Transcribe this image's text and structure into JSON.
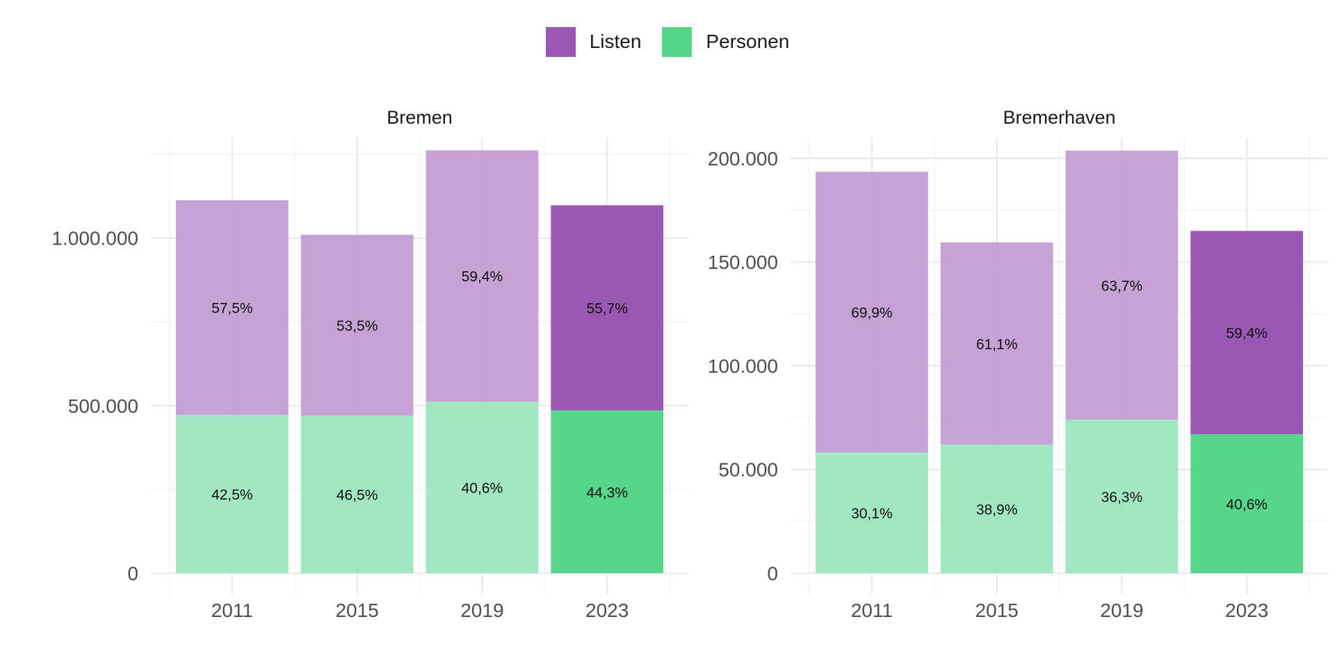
{
  "legend": {
    "items": [
      {
        "label": "Listen",
        "color": "#9a58b2"
      },
      {
        "label": "Personen",
        "color": "#57d58b"
      }
    ]
  },
  "chart_data": [
    {
      "type": "bar",
      "stacked": true,
      "title": "Bremen",
      "categories": [
        "2011",
        "2015",
        "2019",
        "2023"
      ],
      "ylim": [
        0,
        1300000
      ],
      "yticks": [
        0,
        500000,
        1000000
      ],
      "ytick_labels": [
        "0",
        "500.000",
        "1.000.000"
      ],
      "series": [
        {
          "name": "Personen",
          "values": [
            473000,
            470000,
            512000,
            486000
          ],
          "labels": [
            "42,5%",
            "46,5%",
            "40,6%",
            "44,3%"
          ]
        },
        {
          "name": "Listen",
          "values": [
            640000,
            540000,
            750000,
            612000
          ],
          "labels": [
            "57,5%",
            "53,5%",
            "59,4%",
            "55,7%"
          ]
        }
      ],
      "highlight_category": "2023"
    },
    {
      "type": "bar",
      "stacked": true,
      "title": "Bremerhaven",
      "categories": [
        "2011",
        "2015",
        "2019",
        "2023"
      ],
      "ylim": [
        0,
        210000
      ],
      "yticks": [
        0,
        50000,
        100000,
        150000,
        200000
      ],
      "ytick_labels": [
        "0",
        "50.000",
        "100.000",
        "150.000",
        "200.000"
      ],
      "series": [
        {
          "name": "Personen",
          "values": [
            58200,
            62000,
            74000,
            67000
          ],
          "labels": [
            "30,1%",
            "38,9%",
            "36,3%",
            "40,6%"
          ]
        },
        {
          "name": "Listen",
          "values": [
            135300,
            97500,
            129700,
            98000
          ],
          "labels": [
            "69,9%",
            "61,1%",
            "63,7%",
            "59,4%"
          ]
        }
      ],
      "highlight_category": "2023"
    }
  ],
  "colors": {
    "listen": "#9a58b2",
    "personen": "#57d58b",
    "listen_muted": "#c29bd2",
    "personen_muted": "#9ce5bb",
    "grid_major": "#ebebeb",
    "grid_minor": "#f3f3f3",
    "axis_text": "#4d4d4d"
  }
}
